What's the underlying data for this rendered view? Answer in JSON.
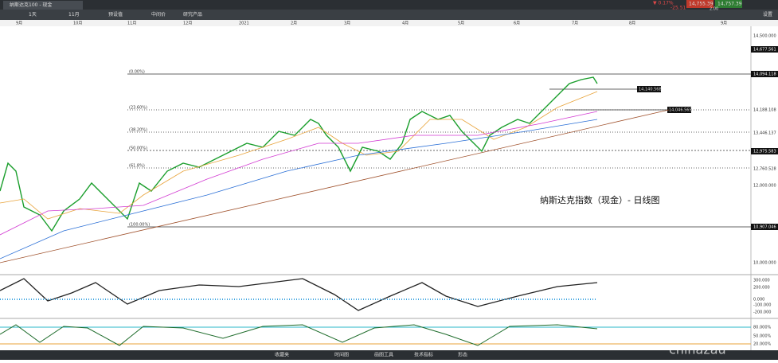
{
  "top_bar": {
    "tab": "纳斯达克100 - 现金",
    "change_pct": "▼ 0.17%",
    "change": "-25.51",
    "sell": "14,755.39",
    "buy": "14,757.39",
    "spread": "2.00"
  },
  "toolbar": {
    "period": "1天",
    "range": "11月",
    "preset": "预设值",
    "mid": "中间价",
    "research": "研究产品",
    "settings": "设置"
  },
  "time_axis": [
    "9月",
    "10月",
    "11月",
    "12月",
    "2021",
    "2月",
    "3月",
    "4月",
    "5月",
    "6月",
    "7月",
    "8月",
    "9月"
  ],
  "price_axis": [
    "14,500.000",
    "14,677.561",
    "14,094.118",
    "14,188.108",
    "13,446.137",
    "12,975.583",
    "12,760.528",
    "12,000.000",
    "10,907.046",
    "10,000.000"
  ],
  "chart_labels": {
    "title": "纳斯达克指数（现金）- 日线图",
    "level_high": "14,140.568",
    "level_mid": "14,046.565"
  },
  "fib_levels": [
    "(0.00%)",
    "(23.60%)",
    "(38.20%)",
    "(50.00%)",
    "(61.8%)",
    "(100.00%)"
  ],
  "macd_axis": [
    "300.000",
    "200.000",
    "0.000",
    "-100.000",
    "-200.000"
  ],
  "stoch_axis": [
    "80.000%",
    "50.000%",
    "20.000%"
  ],
  "bottom_bar": [
    "收藏夹",
    "时间图",
    "画图工具",
    "技术指标",
    "形态"
  ],
  "watermark": "chinazau"
}
